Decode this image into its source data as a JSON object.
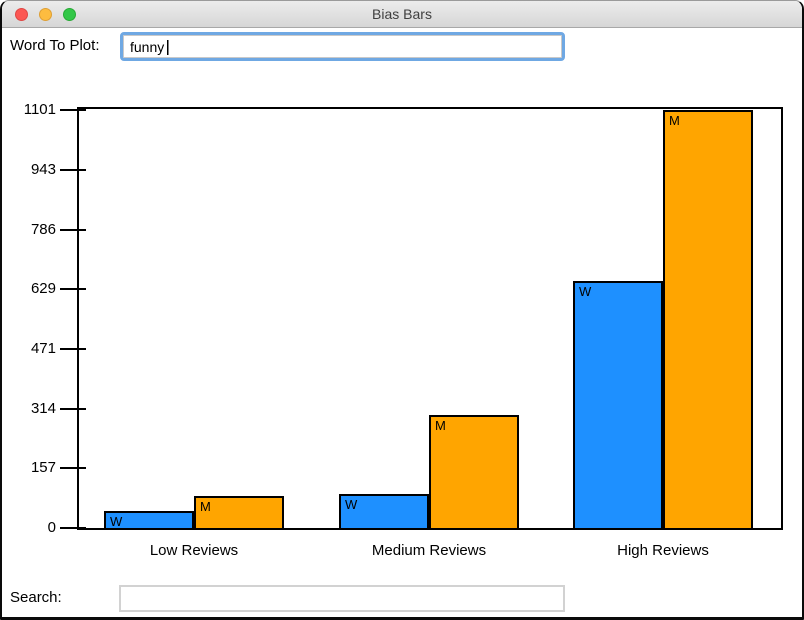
{
  "window": {
    "title": "Bias Bars"
  },
  "word_input_row": {
    "label": "Word To Plot:",
    "value": "funny"
  },
  "search_row": {
    "label": "Search:",
    "value": ""
  },
  "colors": {
    "women_bar": "#1E90FF",
    "men_bar": "#FFA500",
    "axis": "#000000",
    "focus_ring": "#6FA8E3"
  },
  "chart_data": {
    "type": "bar",
    "title": "",
    "xlabel": "",
    "ylabel": "",
    "categories": [
      "Low Reviews",
      "Medium Reviews",
      "High Reviews"
    ],
    "series": [
      {
        "name": "W",
        "color": "#1E90FF",
        "values": [
          46,
          90,
          650
        ]
      },
      {
        "name": "M",
        "color": "#FFA500",
        "values": [
          85,
          298,
          1101
        ]
      }
    ],
    "yticks": [
      0,
      157,
      314,
      471,
      629,
      786,
      943,
      1101
    ],
    "ylim": [
      0,
      1101
    ],
    "grid": false,
    "legend_position": "none",
    "bar_inline_labels": [
      "W",
      "M"
    ]
  }
}
